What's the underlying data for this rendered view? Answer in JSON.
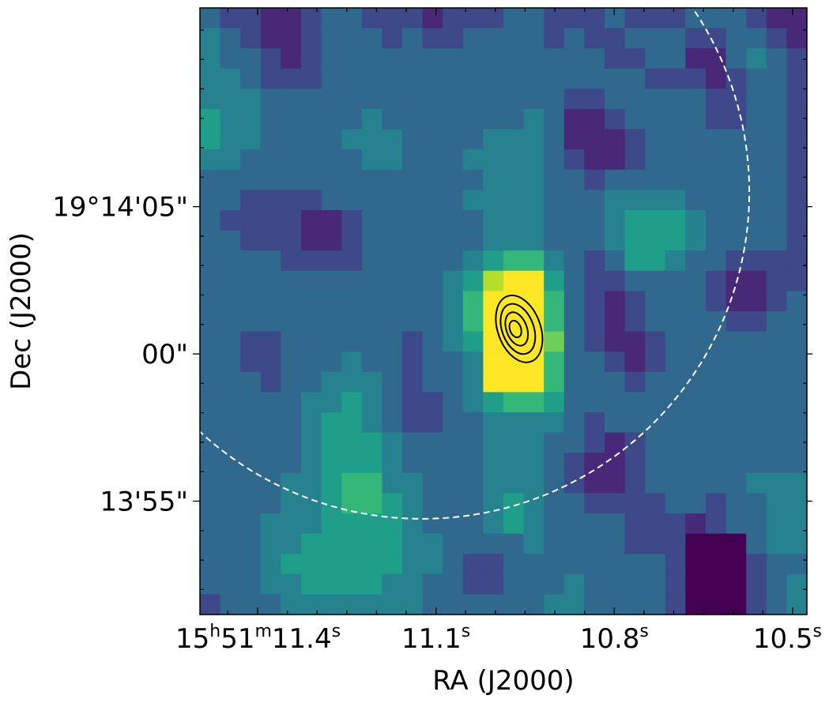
{
  "chart_data": {
    "type": "heatmap",
    "title": "",
    "xlabel": "RA (J2000)",
    "ylabel": "Dec (J2000)",
    "colormap": "viridis",
    "grid": false,
    "legend": "none",
    "xlim_ra_seconds": [
      11.497,
      10.476
    ],
    "ylim_dec_arcsec_offset": [
      -8.85,
      11.75
    ],
    "x_ticks": [
      {
        "ra_seconds": 11.4,
        "h": "15",
        "m": "51",
        "s": "11.4",
        "label": "15h51m11.4s"
      },
      {
        "ra_seconds": 11.1,
        "h": "",
        "m": "",
        "s": "11.1",
        "label": "11.1s"
      },
      {
        "ra_seconds": 10.8,
        "h": "",
        "m": "",
        "s": "10.8",
        "label": "10.8s"
      },
      {
        "ra_seconds": 10.5,
        "h": "",
        "m": "",
        "s": "10.5",
        "label": "10.5s"
      }
    ],
    "y_ticks": [
      {
        "dec_offset_arcsec": 5,
        "label": "19°14'05\""
      },
      {
        "dec_offset_arcsec": 0,
        "label": "00\""
      },
      {
        "dec_offset_arcsec": -5,
        "label": "13'55\""
      }
    ],
    "colors": {
      "viridis": [
        "#440154",
        "#482878",
        "#3e4989",
        "#31688e",
        "#26828e",
        "#1f9e89",
        "#35b779",
        "#6ece58",
        "#b5de2b",
        "#fde725"
      ],
      "contour": "#000000",
      "beam_circle": "#ffffff"
    },
    "contours": {
      "center_ra_seconds": 10.96,
      "center_dec_offset_arcsec": 0.85,
      "levels": [
        1,
        2,
        3,
        4
      ]
    },
    "dashed_circle": {
      "center_ra_seconds": 11.123,
      "center_dec_offset_arcsec": 5.5,
      "radius_arcsec": 11.1
    },
    "intensity_grid": {
      "rows": 30,
      "cols": 30,
      "scale": "0 = darkest, 9 = brightest",
      "values": [
        [
          3,
          2,
          2,
          1,
          1,
          2,
          3,
          3,
          2,
          2,
          2,
          1,
          2,
          2,
          2,
          3,
          3,
          2,
          2,
          2,
          3,
          2,
          2,
          2,
          3,
          3,
          3,
          2,
          1,
          1
        ],
        [
          4,
          3,
          2,
          1,
          1,
          2,
          3,
          3,
          3,
          2,
          3,
          2,
          2,
          3,
          3,
          3,
          3,
          2,
          3,
          2,
          2,
          3,
          3,
          3,
          2,
          2,
          3,
          3,
          2,
          1
        ],
        [
          4,
          3,
          3,
          2,
          1,
          2,
          3,
          3,
          3,
          3,
          3,
          3,
          3,
          3,
          3,
          3,
          3,
          3,
          3,
          3,
          2,
          2,
          3,
          3,
          1,
          1,
          3,
          4,
          3,
          2
        ],
        [
          4,
          4,
          3,
          2,
          2,
          2,
          3,
          3,
          3,
          3,
          3,
          3,
          3,
          3,
          3,
          3,
          3,
          3,
          3,
          3,
          3,
          3,
          2,
          2,
          2,
          1,
          2,
          3,
          3,
          2
        ],
        [
          4,
          4,
          4,
          3,
          3,
          3,
          3,
          3,
          3,
          3,
          3,
          3,
          3,
          3,
          3,
          3,
          3,
          3,
          2,
          2,
          3,
          3,
          3,
          3,
          3,
          2,
          2,
          3,
          3,
          2
        ],
        [
          5,
          4,
          4,
          3,
          3,
          3,
          3,
          3,
          4,
          3,
          3,
          3,
          3,
          3,
          3,
          3,
          4,
          3,
          1,
          1,
          2,
          3,
          3,
          3,
          3,
          2,
          2,
          3,
          3,
          2
        ],
        [
          5,
          4,
          4,
          3,
          3,
          3,
          3,
          4,
          4,
          4,
          3,
          3,
          3,
          3,
          4,
          4,
          4,
          3,
          1,
          1,
          1,
          2,
          3,
          3,
          3,
          3,
          3,
          3,
          3,
          2
        ],
        [
          4,
          4,
          3,
          3,
          3,
          3,
          3,
          3,
          4,
          4,
          3,
          3,
          3,
          4,
          4,
          4,
          4,
          3,
          2,
          1,
          1,
          2,
          3,
          3,
          3,
          3,
          3,
          3,
          3,
          2
        ],
        [
          3,
          3,
          3,
          3,
          3,
          3,
          3,
          3,
          3,
          3,
          3,
          3,
          3,
          3,
          4,
          4,
          4,
          3,
          3,
          2,
          3,
          3,
          3,
          3,
          3,
          3,
          3,
          3,
          3,
          2
        ],
        [
          3,
          3,
          2,
          2,
          2,
          2,
          3,
          3,
          3,
          3,
          3,
          3,
          3,
          4,
          4,
          4,
          4,
          3,
          3,
          3,
          4,
          4,
          4,
          4,
          3,
          3,
          3,
          3,
          3,
          2
        ],
        [
          3,
          2,
          2,
          2,
          2,
          1,
          1,
          2,
          3,
          3,
          3,
          3,
          3,
          3,
          4,
          4,
          4,
          3,
          3,
          3,
          4,
          5,
          5,
          5,
          4,
          3,
          3,
          3,
          3,
          2
        ],
        [
          3,
          3,
          2,
          2,
          2,
          1,
          1,
          2,
          3,
          3,
          3,
          3,
          3,
          3,
          4,
          4,
          4,
          3,
          3,
          3,
          4,
          5,
          5,
          5,
          4,
          3,
          3,
          3,
          3,
          2
        ],
        [
          3,
          3,
          3,
          3,
          2,
          2,
          2,
          2,
          3,
          3,
          3,
          3,
          3,
          4,
          5,
          6,
          6,
          4,
          3,
          2,
          3,
          5,
          5,
          4,
          3,
          3,
          2,
          2,
          2,
          2
        ],
        [
          3,
          3,
          3,
          3,
          3,
          3,
          3,
          3,
          3,
          3,
          3,
          3,
          4,
          5,
          8,
          9,
          9,
          5,
          3,
          2,
          2,
          3,
          3,
          3,
          3,
          2,
          1,
          1,
          2,
          2
        ],
        [
          3,
          3,
          3,
          3,
          3,
          3,
          3,
          3,
          3,
          3,
          3,
          3,
          4,
          6,
          9,
          9,
          9,
          6,
          3,
          2,
          1,
          2,
          3,
          3,
          3,
          2,
          1,
          1,
          2,
          3
        ],
        [
          3,
          3,
          3,
          3,
          3,
          3,
          3,
          3,
          3,
          3,
          3,
          3,
          4,
          6,
          9,
          9,
          9,
          6,
          3,
          2,
          1,
          2,
          3,
          3,
          3,
          3,
          2,
          2,
          3,
          3
        ],
        [
          3,
          3,
          2,
          2,
          3,
          3,
          3,
          3,
          3,
          3,
          2,
          3,
          4,
          5,
          9,
          9,
          9,
          7,
          3,
          2,
          1,
          1,
          2,
          3,
          3,
          3,
          3,
          3,
          3,
          3
        ],
        [
          3,
          3,
          2,
          2,
          3,
          3,
          3,
          4,
          3,
          3,
          2,
          3,
          3,
          4,
          9,
          9,
          9,
          6,
          3,
          3,
          2,
          1,
          2,
          3,
          3,
          3,
          3,
          3,
          3,
          3
        ],
        [
          3,
          3,
          3,
          2,
          3,
          3,
          4,
          4,
          4,
          3,
          2,
          3,
          3,
          4,
          9,
          9,
          9,
          6,
          3,
          3,
          3,
          2,
          3,
          3,
          3,
          3,
          3,
          3,
          3,
          3
        ],
        [
          3,
          3,
          3,
          3,
          3,
          4,
          4,
          5,
          4,
          3,
          2,
          2,
          3,
          4,
          5,
          6,
          6,
          5,
          3,
          3,
          3,
          3,
          3,
          3,
          3,
          3,
          3,
          3,
          3,
          3
        ],
        [
          3,
          3,
          3,
          3,
          3,
          4,
          5,
          5,
          4,
          3,
          2,
          2,
          3,
          3,
          4,
          4,
          4,
          4,
          3,
          2,
          3,
          3,
          3,
          3,
          3,
          3,
          3,
          3,
          3,
          3
        ],
        [
          3,
          3,
          3,
          3,
          3,
          4,
          5,
          5,
          5,
          4,
          3,
          3,
          3,
          3,
          4,
          4,
          4,
          3,
          3,
          2,
          1,
          2,
          3,
          3,
          3,
          3,
          3,
          3,
          3,
          3
        ],
        [
          3,
          3,
          3,
          3,
          3,
          4,
          5,
          5,
          5,
          4,
          3,
          3,
          3,
          3,
          4,
          4,
          4,
          3,
          2,
          1,
          1,
          2,
          3,
          3,
          3,
          3,
          3,
          3,
          3,
          3
        ],
        [
          3,
          3,
          3,
          3,
          4,
          4,
          5,
          6,
          6,
          4,
          4,
          3,
          3,
          3,
          4,
          4,
          4,
          3,
          2,
          1,
          1,
          2,
          3,
          3,
          3,
          3,
          3,
          4,
          4,
          4
        ],
        [
          3,
          3,
          3,
          3,
          4,
          4,
          5,
          6,
          6,
          5,
          4,
          3,
          3,
          3,
          4,
          5,
          4,
          3,
          3,
          2,
          2,
          2,
          2,
          3,
          3,
          2,
          3,
          3,
          4,
          4
        ],
        [
          3,
          3,
          3,
          4,
          4,
          4,
          5,
          5,
          5,
          5,
          4,
          3,
          3,
          3,
          4,
          5,
          4,
          3,
          3,
          3,
          3,
          2,
          2,
          2,
          1,
          2,
          3,
          3,
          4,
          4
        ],
        [
          3,
          3,
          3,
          4,
          4,
          5,
          5,
          5,
          5,
          5,
          4,
          4,
          3,
          3,
          3,
          3,
          4,
          3,
          3,
          3,
          3,
          2,
          2,
          2,
          0,
          0,
          0,
          3,
          4,
          4
        ],
        [
          3,
          3,
          3,
          4,
          5,
          5,
          5,
          5,
          5,
          5,
          4,
          4,
          3,
          2,
          2,
          3,
          3,
          3,
          3,
          3,
          3,
          3,
          3,
          2,
          0,
          0,
          0,
          2,
          3,
          3
        ],
        [
          3,
          3,
          3,
          4,
          4,
          5,
          5,
          5,
          5,
          4,
          4,
          3,
          3,
          2,
          2,
          3,
          3,
          3,
          4,
          3,
          3,
          3,
          3,
          2,
          0,
          0,
          0,
          2,
          3,
          4
        ],
        [
          2,
          3,
          3,
          3,
          4,
          4,
          4,
          4,
          4,
          4,
          4,
          3,
          3,
          3,
          3,
          3,
          3,
          4,
          4,
          3,
          3,
          3,
          3,
          2,
          0,
          0,
          0,
          2,
          3,
          4
        ]
      ]
    }
  }
}
